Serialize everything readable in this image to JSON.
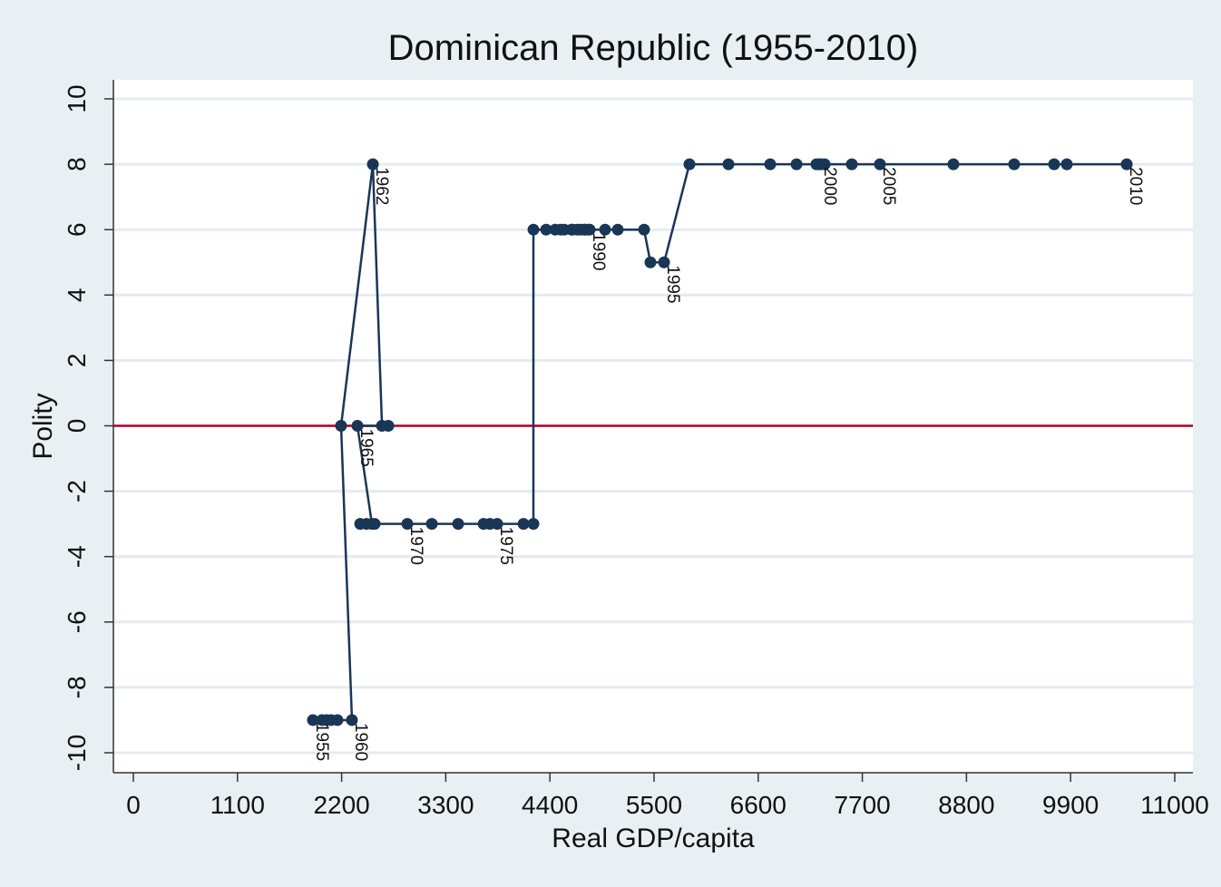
{
  "chart_data": {
    "type": "line",
    "title": "Dominican Republic (1955-2010)",
    "xlabel": "Real GDP/capita",
    "ylabel": "Polity",
    "xlim": [
      0,
      11000
    ],
    "ylim": [
      -10,
      10
    ],
    "xticks": [
      "0",
      "1100",
      "2200",
      "3300",
      "4400",
      "5500",
      "6600",
      "7700",
      "8800",
      "9900",
      "11000"
    ],
    "xtick_values": [
      0,
      1100,
      2200,
      3300,
      4400,
      5500,
      6600,
      7700,
      8800,
      9900,
      11000
    ],
    "yticks": [
      "-10",
      "-8",
      "-6",
      "-4",
      "-2",
      "0",
      "2",
      "4",
      "6",
      "8",
      "10"
    ],
    "ytick_values": [
      -10,
      -8,
      -6,
      -4,
      -2,
      0,
      2,
      4,
      6,
      8,
      10
    ],
    "grid": true,
    "reference_line": {
      "y": 0,
      "color": "#b5002a"
    },
    "series_color": "#1a3656",
    "points": [
      {
        "year": 1955,
        "x": 1897,
        "y": -9
      },
      {
        "year": 1956,
        "x": 1993,
        "y": -9
      },
      {
        "year": 1957,
        "x": 2041,
        "y": -9
      },
      {
        "year": 1958,
        "x": 2089,
        "y": -9
      },
      {
        "year": 1959,
        "x": 2156,
        "y": -9
      },
      {
        "year": 1960,
        "x": 2309,
        "y": -9
      },
      {
        "year": 1961,
        "x": 2194,
        "y": 0
      },
      {
        "year": 1962,
        "x": 2530,
        "y": 8
      },
      {
        "year": 1963,
        "x": 2626,
        "y": 0
      },
      {
        "year": 1964,
        "x": 2693,
        "y": 0
      },
      {
        "year": 1965,
        "x": 2367,
        "y": 0
      },
      {
        "year": 1966,
        "x": 2520,
        "y": -3
      },
      {
        "year": 1967,
        "x": 2396,
        "y": -3
      },
      {
        "year": 1968,
        "x": 2463,
        "y": -3
      },
      {
        "year": 1969,
        "x": 2549,
        "y": -3
      },
      {
        "year": 1970,
        "x": 2894,
        "y": -3
      },
      {
        "year": 1971,
        "x": 3153,
        "y": -3
      },
      {
        "year": 1972,
        "x": 3431,
        "y": -3
      },
      {
        "year": 1973,
        "x": 3699,
        "y": -3
      },
      {
        "year": 1974,
        "x": 3766,
        "y": -3
      },
      {
        "year": 1975,
        "x": 3843,
        "y": -3
      },
      {
        "year": 1976,
        "x": 4121,
        "y": -3
      },
      {
        "year": 1977,
        "x": 4226,
        "y": -3
      },
      {
        "year": 1978,
        "x": 4226,
        "y": 6
      },
      {
        "year": 1979,
        "x": 4360,
        "y": 6
      },
      {
        "year": 1980,
        "x": 4456,
        "y": 6
      },
      {
        "year": 1981,
        "x": 4513,
        "y": 6
      },
      {
        "year": 1982,
        "x": 4552,
        "y": 6
      },
      {
        "year": 1983,
        "x": 4638,
        "y": 6
      },
      {
        "year": 1984,
        "x": 4686,
        "y": 6
      },
      {
        "year": 1985,
        "x": 4724,
        "y": 6
      },
      {
        "year": 1986,
        "x": 4763,
        "y": 6
      },
      {
        "year": 1987,
        "x": 4628,
        "y": 6
      },
      {
        "year": 1988,
        "x": 4772,
        "y": 6
      },
      {
        "year": 1989,
        "x": 4801,
        "y": 6
      },
      {
        "year": 1990,
        "x": 4820,
        "y": 6
      },
      {
        "year": 1991,
        "x": 4983,
        "y": 6
      },
      {
        "year": 1992,
        "x": 5117,
        "y": 6
      },
      {
        "year": 1993,
        "x": 5395,
        "y": 6
      },
      {
        "year": 1994,
        "x": 5462,
        "y": 5
      },
      {
        "year": 1995,
        "x": 5606,
        "y": 5
      },
      {
        "year": 1996,
        "x": 5874,
        "y": 8
      },
      {
        "year": 1997,
        "x": 6286,
        "y": 8
      },
      {
        "year": 1998,
        "x": 6727,
        "y": 8
      },
      {
        "year": 1999,
        "x": 7005,
        "y": 8
      },
      {
        "year": 2000,
        "x": 7263,
        "y": 8
      },
      {
        "year": 2001,
        "x": 7215,
        "y": 8
      },
      {
        "year": 2002,
        "x": 7244,
        "y": 8
      },
      {
        "year": 2003,
        "x": 7302,
        "y": 8
      },
      {
        "year": 2004,
        "x": 7589,
        "y": 8
      },
      {
        "year": 2005,
        "x": 7886,
        "y": 8
      },
      {
        "year": 2006,
        "x": 8662,
        "y": 8
      },
      {
        "year": 2007,
        "x": 9304,
        "y": 8
      },
      {
        "year": 2008,
        "x": 9726,
        "y": 8
      },
      {
        "year": 2009,
        "x": 9860,
        "y": 8
      },
      {
        "year": 2010,
        "x": 10493,
        "y": 8
      }
    ],
    "labels": [
      {
        "text": "1955",
        "year": 1955
      },
      {
        "text": "1960",
        "year": 1960
      },
      {
        "text": "1962",
        "year": 1962
      },
      {
        "text": "1965",
        "year": 1965
      },
      {
        "text": "1970",
        "year": 1970
      },
      {
        "text": "1975",
        "year": 1975
      },
      {
        "text": "1990",
        "year": 1990
      },
      {
        "text": "1995",
        "year": 1995
      },
      {
        "text": "2000",
        "year": 2000
      },
      {
        "text": "2005",
        "year": 2005
      },
      {
        "text": "2010",
        "year": 2010
      }
    ]
  }
}
